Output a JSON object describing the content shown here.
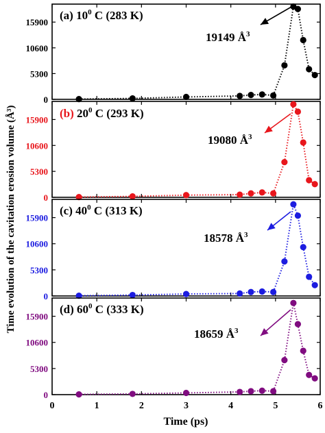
{
  "chart_data": [
    {
      "type": "line",
      "panel_label": "(a)",
      "temp_base": "10",
      "temp_sup": "0",
      "temp_unit": "C",
      "temp_kelvin": "(283 K)",
      "annotation_value": "19149",
      "annotation_unit": "Å",
      "annotation_sup": "3",
      "color": "#000000",
      "label_color": "#000000",
      "x": [
        0.6,
        1.8,
        3.0,
        4.2,
        4.45,
        4.7,
        4.95,
        5.2,
        5.4,
        5.5,
        5.62,
        5.75,
        5.88
      ],
      "y": [
        50,
        200,
        500,
        700,
        900,
        1000,
        800,
        7000,
        19100,
        18600,
        12200,
        6200,
        5000
      ],
      "ylim": [
        0,
        19600
      ],
      "yticks": [
        0,
        5300,
        10600,
        15900
      ]
    },
    {
      "type": "line",
      "panel_label": "(b)",
      "temp_base": "20",
      "temp_sup": "0",
      "temp_unit": "C",
      "temp_kelvin": "(293 K)",
      "annotation_value": "19080",
      "annotation_unit": "Å",
      "annotation_sup": "3",
      "color": "#e8161c",
      "label_color": "#e8161c",
      "x": [
        0.6,
        1.8,
        3.0,
        4.2,
        4.45,
        4.7,
        4.95,
        5.2,
        5.4,
        5.5,
        5.62,
        5.75,
        5.88
      ],
      "y": [
        50,
        200,
        450,
        550,
        800,
        1000,
        800,
        7200,
        19000,
        17500,
        11200,
        3500,
        2700
      ],
      "ylim": [
        0,
        19600
      ],
      "yticks": [
        0,
        5300,
        10600,
        15900
      ]
    },
    {
      "type": "line",
      "panel_label": "(c)",
      "temp_base": "40",
      "temp_sup": "0",
      "temp_unit": "C",
      "temp_kelvin": "(313 K)",
      "annotation_value": "18578",
      "annotation_unit": "Å",
      "annotation_sup": "3",
      "color": "#1c1ce0",
      "label_color": "#000000",
      "x": [
        0.6,
        1.8,
        3.0,
        4.2,
        4.45,
        4.7,
        4.95,
        5.2,
        5.4,
        5.5,
        5.62,
        5.75,
        5.88
      ],
      "y": [
        50,
        200,
        400,
        500,
        800,
        900,
        800,
        7000,
        18600,
        16300,
        9900,
        3900,
        2200
      ],
      "ylim": [
        0,
        19600
      ],
      "yticks": [
        0,
        5300,
        10600,
        15900
      ]
    },
    {
      "type": "line",
      "panel_label": "(d)",
      "temp_base": "60",
      "temp_sup": "0",
      "temp_unit": "C",
      "temp_kelvin": "(333 K)",
      "annotation_value": "18659",
      "annotation_unit": "Å",
      "annotation_sup": "3",
      "color": "#800c80",
      "label_color": "#000000",
      "x": [
        0.6,
        1.8,
        3.0,
        4.2,
        4.45,
        4.7,
        4.95,
        5.2,
        5.4,
        5.5,
        5.62,
        5.75,
        5.88
      ],
      "y": [
        50,
        150,
        350,
        550,
        700,
        800,
        700,
        7000,
        18600,
        14300,
        8900,
        4000,
        3300
      ],
      "ylim": [
        0,
        19600
      ],
      "yticks": [
        0,
        5300,
        10600,
        15900
      ]
    }
  ],
  "axes": {
    "xlabel": "Time (ps)",
    "ylabel": "Time evolution of the cavitation erosion volume (Å³)",
    "xlim": [
      0,
      6
    ],
    "xticks": [
      0,
      1,
      2,
      3,
      4,
      5,
      6
    ],
    "grid": false
  }
}
